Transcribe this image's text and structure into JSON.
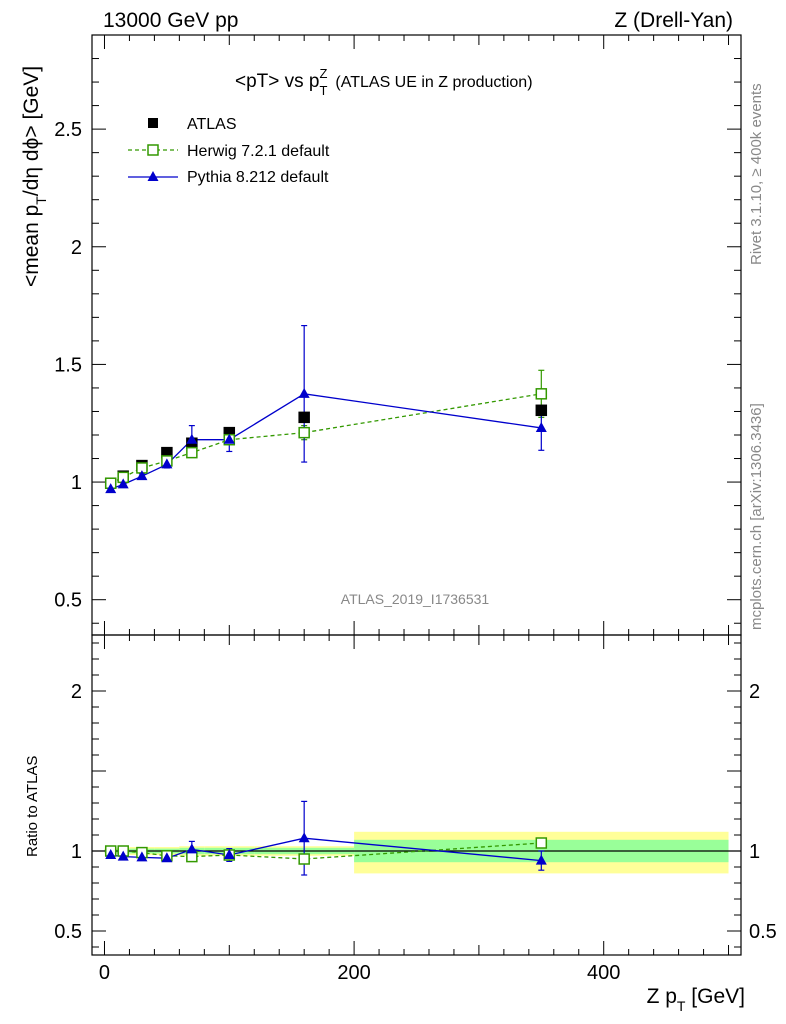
{
  "header": {
    "left": "13000 GeV pp",
    "right": "Z (Drell-Yan)",
    "title_main": "<pT> vs p",
    "title_sup": "Z",
    "title_sub": "T",
    "title_note": "(ATLAS UE in Z production)"
  },
  "side": {
    "rivet": "Rivet 3.1.10, ≥ 400k events",
    "mcplots": "mcplots.cern.ch [arXiv:1306.3436]"
  },
  "watermark": "ATLAS_2019_I1736531",
  "axes": {
    "ylabel_main_a": "<mean p",
    "ylabel_main_sub": "T",
    "ylabel_main_b": "/dη dϕ> [GeV]",
    "ylabel_ratio": "Ratio to ATLAS",
    "xlabel_a": "Z p",
    "xlabel_sub": "T",
    "xlabel_b": " [GeV]",
    "main_yticks": [
      "0.5",
      "1",
      "1.5",
      "2",
      "2.5"
    ],
    "ratio_yticks": [
      "0.5",
      "1",
      "2"
    ],
    "xticks": [
      "0",
      "200",
      "400"
    ]
  },
  "legend": {
    "atlas": "ATLAS",
    "herwig": "Herwig 7.2.1 default",
    "pythia": "Pythia 8.212 default"
  },
  "colors": {
    "atlas": "#000000",
    "herwig": "#339900",
    "pythia": "#0000cc",
    "band_inner": "#99ff99",
    "band_outer": "#ffff99"
  },
  "chart_data": {
    "type": "scatter",
    "x": [
      5,
      15,
      30,
      50,
      70,
      100,
      160,
      350
    ],
    "xlim": [
      -10,
      510
    ],
    "ylim_main": [
      0.35,
      2.9
    ],
    "ylim_ratio": [
      0.35,
      2.35
    ],
    "series": [
      {
        "name": "ATLAS",
        "values": [
          0.995,
          1.025,
          1.07,
          1.125,
          1.165,
          1.21,
          1.275,
          1.305
        ]
      },
      {
        "name": "Herwig 7.2.1 default",
        "values": [
          0.995,
          1.02,
          1.06,
          1.09,
          1.125,
          1.18,
          1.21,
          1.375
        ],
        "errors": [
          0.01,
          0.01,
          0.01,
          0.01,
          0.015,
          0.02,
          0.03,
          0.1
        ]
      },
      {
        "name": "Pythia 8.212 default",
        "values": [
          0.97,
          0.99,
          1.025,
          1.075,
          1.18,
          1.18,
          1.375,
          1.23
        ],
        "errors": [
          0.01,
          0.01,
          0.01,
          0.015,
          0.06,
          0.05,
          0.29,
          0.095
        ]
      }
    ],
    "ratio": {
      "herwig": [
        1.0,
        1.0,
        0.99,
        0.97,
        0.965,
        0.975,
        0.95,
        1.05
      ],
      "herwig_err": [
        0.01,
        0.01,
        0.01,
        0.01,
        0.015,
        0.02,
        0.03,
        0.03
      ],
      "pythia": [
        0.975,
        0.965,
        0.96,
        0.955,
        1.01,
        0.975,
        1.08,
        0.94
      ],
      "pythia_err": [
        0.01,
        0.01,
        0.01,
        0.015,
        0.05,
        0.04,
        0.23,
        0.06
      ],
      "band_bins": [
        [
          0,
          10,
          0.99,
          1.01,
          0.985,
          1.015
        ],
        [
          10,
          20,
          0.985,
          1.015,
          0.98,
          1.02
        ],
        [
          20,
          40,
          0.985,
          1.015,
          0.975,
          1.025
        ],
        [
          40,
          60,
          0.985,
          1.015,
          0.975,
          1.025
        ],
        [
          60,
          80,
          0.98,
          1.02,
          0.97,
          1.03
        ],
        [
          80,
          120,
          0.98,
          1.02,
          0.97,
          1.03
        ],
        [
          120,
          200,
          0.98,
          1.02,
          0.97,
          1.03
        ],
        [
          200,
          500,
          0.93,
          1.07,
          0.86,
          1.12
        ]
      ]
    }
  }
}
